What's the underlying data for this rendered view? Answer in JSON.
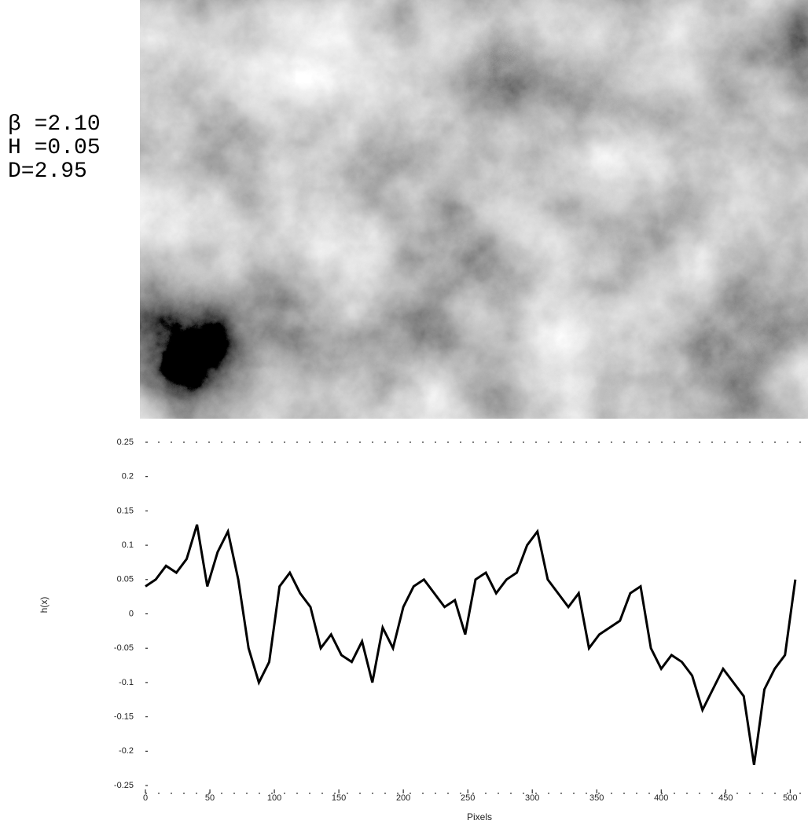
{
  "chart_data": {
    "type": "line",
    "annotations": [
      "β =2.10",
      "H =0.05",
      "D=2.95"
    ],
    "xlabel": "Pixels",
    "ylabel": "h(x)",
    "x": [
      0,
      8,
      16,
      24,
      32,
      40,
      48,
      56,
      64,
      72,
      80,
      88,
      96,
      104,
      112,
      120,
      128,
      136,
      144,
      152,
      160,
      168,
      176,
      184,
      192,
      200,
      208,
      216,
      224,
      232,
      240,
      248,
      256,
      264,
      272,
      280,
      288,
      296,
      304,
      312,
      320,
      328,
      336,
      344,
      352,
      360,
      368,
      376,
      384,
      392,
      400,
      408,
      416,
      424,
      432,
      440,
      448,
      456,
      464,
      472,
      480,
      488,
      496,
      504
    ],
    "series": [
      {
        "color": "#000000",
        "values": [
          0.04,
          0.05,
          0.07,
          0.06,
          0.08,
          0.13,
          0.04,
          0.09,
          0.12,
          0.05,
          -0.05,
          -0.1,
          -0.07,
          0.04,
          0.06,
          0.03,
          0.01,
          -0.05,
          -0.03,
          -0.06,
          -0.07,
          -0.04,
          -0.1,
          -0.02,
          -0.05,
          0.01,
          0.04,
          0.05,
          0.03,
          0.01,
          0.02,
          -0.03,
          0.05,
          0.06,
          0.03,
          0.05,
          0.06,
          0.1,
          0.12,
          0.05,
          0.03,
          0.01,
          0.03,
          -0.05,
          -0.03,
          -0.02,
          -0.01,
          0.03,
          0.04,
          -0.05,
          -0.08,
          -0.06,
          -0.07,
          -0.09,
          -0.14,
          -0.11,
          -0.08,
          -0.1,
          -0.12,
          -0.22,
          -0.11,
          -0.08,
          -0.06,
          0.05
        ]
      }
    ],
    "xlim": [
      0,
      512
    ],
    "xticks": [
      0,
      50,
      100,
      150,
      200,
      250,
      300,
      350,
      400,
      450,
      500
    ],
    "ylim": [
      -0.25,
      0.25
    ],
    "yticks": [
      -0.25,
      -0.2,
      -0.15,
      -0.1,
      -0.05,
      0,
      0.05,
      0.1,
      0.15,
      0.2,
      0.25
    ]
  }
}
